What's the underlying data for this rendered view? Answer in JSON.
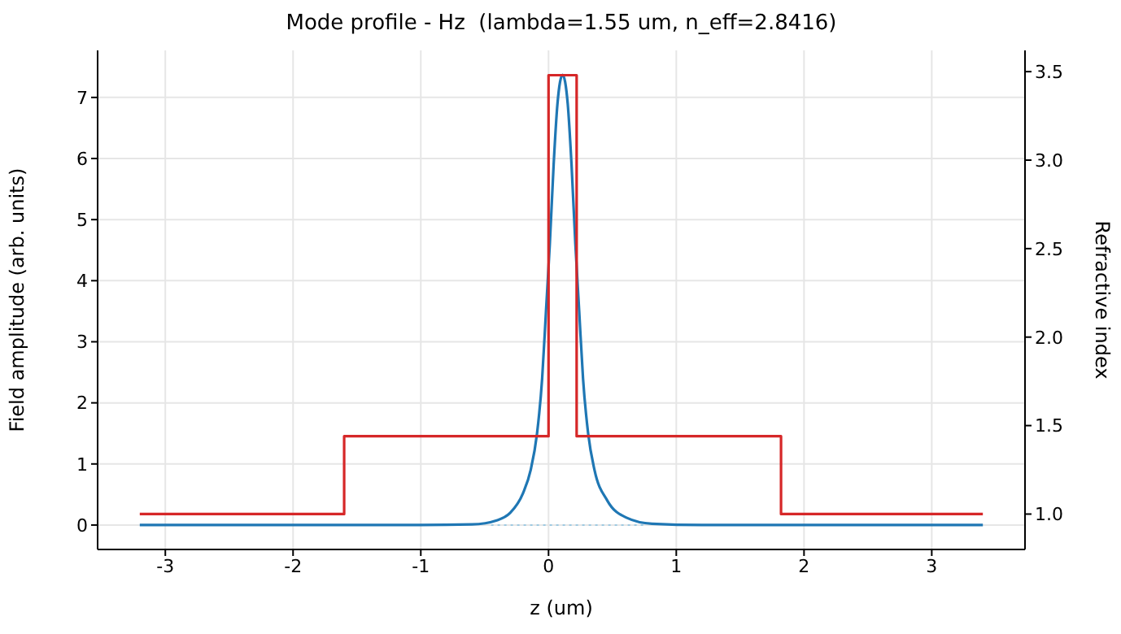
{
  "chart_data": {
    "type": "line",
    "title": "Mode profile - Hz  (lambda=1.55 um, n_eff=2.8416)",
    "xlabel": "z (um)",
    "ylabel": "Field amplitude (arb. units)",
    "y2label": "Refractive index",
    "xlim": [
      -3.53,
      3.73
    ],
    "xticks": [
      -3,
      -2,
      -1,
      0,
      1,
      2,
      3
    ],
    "ylim": [
      -0.4,
      7.77
    ],
    "yticks": [
      0,
      1,
      2,
      3,
      4,
      5,
      6,
      7
    ],
    "y2lim": [
      0.8,
      3.62
    ],
    "y2ticks": [
      {
        "value": 1,
        "label": "1.0"
      },
      {
        "value": 1.5,
        "label": "1.5"
      },
      {
        "value": 2,
        "label": "2.0"
      },
      {
        "value": 2.5,
        "label": "2.5"
      },
      {
        "value": 3,
        "label": "3.0"
      },
      {
        "value": 3.5,
        "label": "3.5"
      }
    ],
    "grid": true,
    "marker": "none",
    "line_style": "solid",
    "series": [
      {
        "color": "#1f77b4",
        "x": [
          -3.2,
          -2,
          -1,
          -0.6,
          -0.4,
          -0.3,
          -0.2,
          -0.14,
          -0.09,
          -0.05,
          -0.02,
          0.01,
          0.04,
          0.07,
          0.11,
          0.15,
          0.18,
          0.21,
          0.24,
          0.27,
          0.31,
          0.36,
          0.46,
          0.61,
          0.81,
          1.2,
          2,
          3.4
        ],
        "values": [
          0,
          0,
          0,
          0.01,
          0.08,
          0.2,
          0.52,
          0.9,
          1.5,
          2.4,
          3.5,
          4.6,
          5.9,
          6.9,
          7.37,
          6.9,
          5.9,
          4.6,
          3.5,
          2.4,
          1.5,
          0.9,
          0.4,
          0.12,
          0.02,
          0,
          0,
          0
        ]
      },
      {
        "type": "step",
        "color": "#d62728",
        "axis": "y2",
        "x": [
          -3.2,
          -1.6,
          0,
          0.22,
          1.82,
          3.4
        ],
        "values": [
          1,
          1.44,
          3.48,
          1.44,
          1,
          1
        ]
      },
      {
        "color": "#9ecae1",
        "line_style": "dotted",
        "x": [
          -0.45,
          0.75
        ],
        "values": [
          0,
          0
        ]
      }
    ]
  }
}
